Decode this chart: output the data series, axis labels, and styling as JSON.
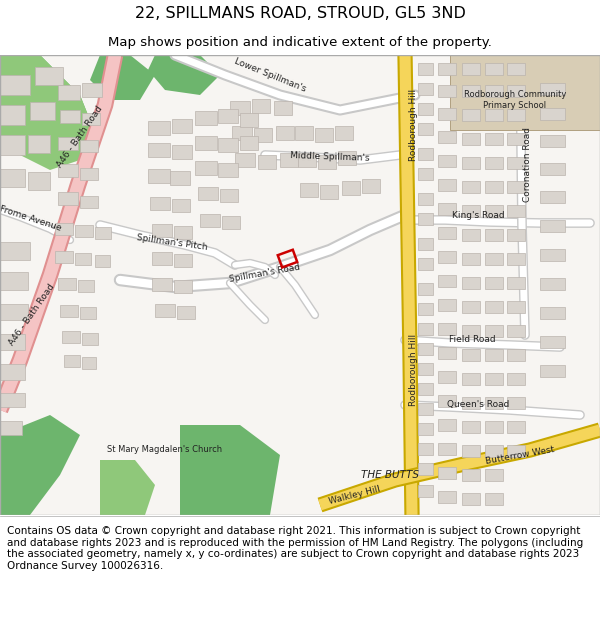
{
  "title_line1": "22, SPILLMANS ROAD, STROUD, GL5 3ND",
  "title_line2": "Map shows position and indicative extent of the property.",
  "copyright_text": "Contains OS data © Crown copyright and database right 2021. This information is subject to Crown copyright and database rights 2023 and is reproduced with the permission of HM Land Registry. The polygons (including the associated geometry, namely x, y co-ordinates) are subject to Crown copyright and database rights 2023 Ordnance Survey 100026316.",
  "bg_color": "#ffffff",
  "map_bg": "#f7f5f2",
  "road_white": "#ffffff",
  "road_grey_outline": "#c8c8c8",
  "green_dark": "#6db56d",
  "green_light": "#8fc87a",
  "road_a_pink": "#f5c4c4",
  "road_a_edge": "#e09090",
  "road_yellow": "#f5d55a",
  "road_yellow_edge": "#c8a800",
  "building_fill": "#d9d4ce",
  "building_edge": "#bbb4ae",
  "plot_red": "#cc0000",
  "school_fill": "#d8cdb5",
  "school_edge": "#b0a080",
  "title_fontsize": 11.5,
  "subtitle_fontsize": 9.5,
  "copyright_fontsize": 7.5
}
